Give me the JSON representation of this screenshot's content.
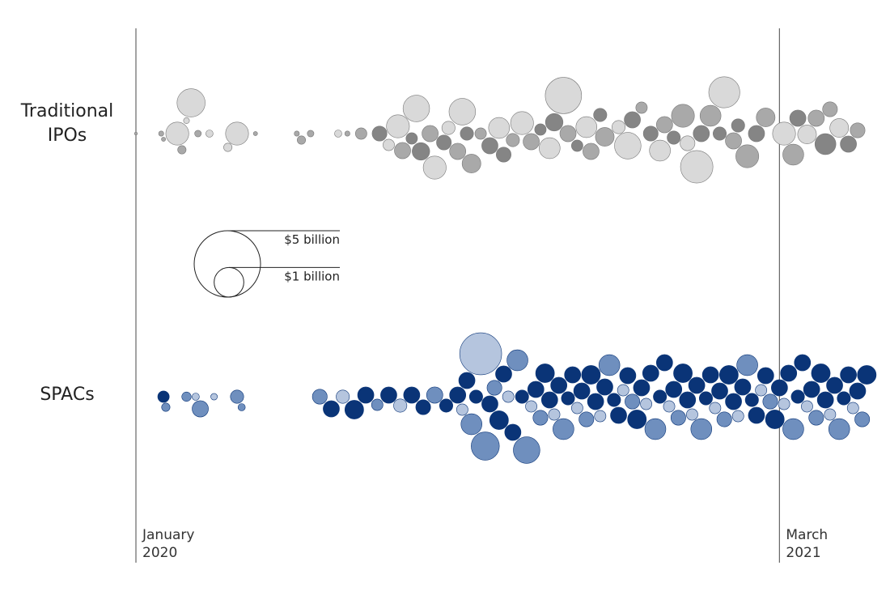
{
  "chart_data": {
    "type": "beeswarm",
    "xlim": [
      0,
      16
    ],
    "xticks": [
      {
        "value": 0,
        "label": "January 2020"
      },
      {
        "value": 14,
        "label": "March 2021"
      }
    ],
    "size_legend": [
      {
        "value": 5,
        "label": "$5 billion"
      },
      {
        "value": 1,
        "label": "$1 billion"
      }
    ],
    "series": [
      {
        "name": "Traditional IPOs",
        "palette": [
          "#d9d9d9",
          "#a9a9a9",
          "#858585"
        ],
        "x": [
          0.0,
          0.55,
          0.6,
          0.9,
          1.0,
          1.1,
          1.2,
          1.35,
          1.6,
          2.2,
          2.0,
          2.6,
          3.5,
          3.6,
          3.8,
          4.4,
          4.6,
          4.9,
          5.3,
          5.5,
          5.7,
          5.8,
          6.0,
          6.1,
          6.2,
          6.4,
          6.5,
          6.7,
          6.8,
          7.0,
          7.1,
          7.2,
          7.3,
          7.5,
          7.7,
          7.9,
          8.0,
          8.2,
          8.4,
          8.6,
          8.8,
          9.0,
          9.1,
          9.3,
          9.4,
          9.6,
          9.8,
          9.9,
          10.1,
          10.2,
          10.5,
          10.7,
          10.8,
          11.0,
          11.2,
          11.4,
          11.5,
          11.7,
          11.9,
          12.0,
          12.2,
          12.3,
          12.5,
          12.7,
          12.8,
          13.0,
          13.1,
          13.3,
          13.5,
          13.7,
          14.1,
          14.3,
          14.4,
          14.6,
          14.8,
          15.0,
          15.1,
          15.3,
          15.5,
          15.7
        ],
        "values": [
          0.01,
          0.03,
          0.02,
          0.6,
          0.08,
          0.04,
          0.9,
          0.05,
          0.06,
          0.6,
          0.08,
          0.02,
          0.03,
          0.08,
          0.05,
          0.06,
          0.03,
          0.15,
          0.25,
          0.15,
          0.6,
          0.3,
          0.15,
          0.8,
          0.35,
          0.3,
          0.6,
          0.25,
          0.2,
          0.3,
          0.8,
          0.2,
          0.4,
          0.15,
          0.3,
          0.5,
          0.25,
          0.2,
          0.6,
          0.3,
          0.15,
          0.5,
          0.35,
          1.5,
          0.3,
          0.15,
          0.5,
          0.3,
          0.2,
          0.4,
          0.2,
          0.8,
          0.3,
          0.15,
          0.25,
          0.5,
          0.3,
          0.2,
          0.6,
          0.25,
          1.2,
          0.3,
          0.5,
          0.2,
          1.1,
          0.3,
          0.2,
          0.6,
          0.3,
          0.4,
          0.6,
          0.5,
          0.3,
          0.4,
          0.3,
          0.5,
          0.25,
          0.4,
          0.3,
          0.25
        ],
        "shade": [
          1,
          1,
          1,
          0,
          1,
          0,
          0,
          1,
          0,
          0,
          0,
          1,
          1,
          1,
          1,
          0,
          1,
          1,
          2,
          0,
          0,
          1,
          2,
          0,
          2,
          1,
          0,
          2,
          0,
          1,
          0,
          2,
          1,
          1,
          2,
          0,
          2,
          1,
          0,
          1,
          2,
          0,
          2,
          0,
          1,
          2,
          0,
          1,
          2,
          1,
          0,
          0,
          2,
          1,
          2,
          0,
          1,
          2,
          1,
          0,
          0,
          2,
          1,
          2,
          0,
          1,
          2,
          1,
          2,
          1,
          0,
          1,
          2,
          0,
          1,
          2,
          1,
          0,
          2,
          1
        ]
      },
      {
        "name": "SPACs",
        "palette": [
          "#0a3477",
          "#6f8fbe",
          "#b5c5de"
        ],
        "x": [
          0.6,
          0.65,
          1.1,
          1.3,
          1.4,
          1.7,
          2.2,
          2.3,
          4.0,
          4.25,
          4.5,
          4.75,
          5.0,
          5.25,
          5.5,
          5.75,
          6.0,
          6.25,
          6.5,
          6.75,
          7.0,
          7.1,
          7.2,
          7.3,
          7.4,
          7.5,
          7.6,
          7.7,
          7.8,
          7.9,
          8.0,
          8.1,
          8.2,
          8.3,
          8.4,
          8.5,
          8.6,
          8.7,
          8.8,
          8.9,
          9.0,
          9.1,
          9.2,
          9.3,
          9.4,
          9.5,
          9.6,
          9.7,
          9.8,
          9.9,
          10.0,
          10.1,
          10.2,
          10.3,
          10.4,
          10.5,
          10.6,
          10.7,
          10.8,
          10.9,
          11.0,
          11.1,
          11.2,
          11.3,
          11.4,
          11.5,
          11.6,
          11.7,
          11.8,
          11.9,
          12.0,
          12.1,
          12.2,
          12.3,
          12.4,
          12.5,
          12.6,
          12.7,
          12.8,
          12.9,
          13.0,
          13.1,
          13.2,
          13.3,
          13.4,
          13.5,
          13.6,
          13.7,
          13.8,
          13.9,
          14.0,
          14.1,
          14.2,
          14.3,
          14.4,
          14.5,
          14.6,
          14.7,
          14.8,
          14.9,
          15.0,
          15.1,
          15.2,
          15.3,
          15.4,
          15.5,
          15.6,
          15.7,
          15.8,
          15.9
        ],
        "values": [
          0.15,
          0.08,
          0.1,
          0.06,
          0.3,
          0.05,
          0.2,
          0.06,
          0.25,
          0.3,
          0.2,
          0.4,
          0.3,
          0.15,
          0.3,
          0.2,
          0.3,
          0.25,
          0.3,
          0.2,
          0.3,
          0.15,
          0.3,
          0.5,
          0.2,
          2.0,
          0.9,
          0.3,
          0.25,
          0.4,
          0.3,
          0.15,
          0.3,
          0.5,
          0.2,
          0.8,
          0.15,
          0.3,
          0.25,
          0.4,
          0.3,
          0.15,
          0.3,
          0.5,
          0.2,
          0.3,
          0.15,
          0.3,
          0.25,
          0.4,
          0.3,
          0.15,
          0.3,
          0.5,
          0.2,
          0.3,
          0.15,
          0.3,
          0.25,
          0.4,
          0.3,
          0.15,
          0.3,
          0.5,
          0.2,
          0.3,
          0.15,
          0.3,
          0.25,
          0.4,
          0.3,
          0.15,
          0.3,
          0.5,
          0.2,
          0.3,
          0.15,
          0.3,
          0.25,
          0.4,
          0.3,
          0.15,
          0.3,
          0.5,
          0.2,
          0.3,
          0.15,
          0.3,
          0.25,
          0.4,
          0.3,
          0.15,
          0.3,
          0.5,
          0.2,
          0.3,
          0.15,
          0.3,
          0.25,
          0.4,
          0.3,
          0.15,
          0.3,
          0.5,
          0.2,
          0.3,
          0.15,
          0.3,
          0.25,
          0.4
        ],
        "shade": [
          0,
          1,
          1,
          2,
          1,
          2,
          1,
          1,
          1,
          0,
          2,
          0,
          0,
          1,
          0,
          2,
          0,
          0,
          1,
          0,
          0,
          2,
          0,
          1,
          0,
          2,
          1,
          0,
          1,
          0,
          0,
          2,
          0,
          1,
          0,
          1,
          2,
          0,
          1,
          0,
          0,
          2,
          0,
          1,
          0,
          0,
          2,
          0,
          1,
          0,
          0,
          2,
          0,
          1,
          0,
          0,
          2,
          0,
          1,
          0,
          0,
          2,
          0,
          1,
          0,
          0,
          2,
          0,
          1,
          0,
          0,
          2,
          0,
          1,
          0,
          0,
          2,
          0,
          1,
          0,
          0,
          2,
          0,
          1,
          0,
          0,
          2,
          0,
          1,
          0,
          0,
          2,
          0,
          1,
          0,
          0,
          2,
          0,
          1,
          0,
          0,
          2,
          0,
          1,
          0,
          0,
          2,
          0,
          1,
          0
        ]
      }
    ]
  }
}
